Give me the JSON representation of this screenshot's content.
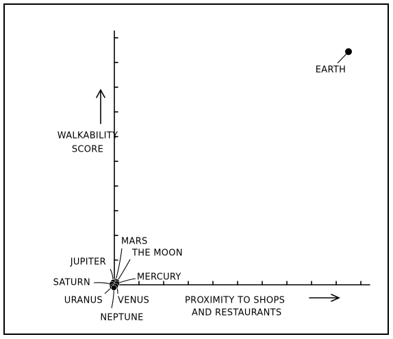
{
  "chart_data": {
    "type": "scatter",
    "ylabel": [
      "WALKABILITY",
      "SCORE"
    ],
    "xlabel": [
      "PROXIMITY TO SHOPS",
      "AND RESTAURANTS"
    ],
    "xlim": [
      0,
      10.36
    ],
    "ylim": [
      0,
      10.28
    ],
    "xticks": [
      1,
      2,
      3,
      4,
      5,
      6,
      7,
      8,
      9,
      10
    ],
    "yticks": [
      1,
      2,
      3,
      4,
      5,
      6,
      7,
      8,
      9,
      10
    ],
    "color": "#000000",
    "points": [
      {
        "label": "EARTH",
        "x": 9.5,
        "y": 9.44
      },
      {
        "label": "MARS",
        "x": 0.05,
        "y": 0.15
      },
      {
        "label": "THE MOON",
        "x": 0.1,
        "y": 0.12
      },
      {
        "label": "JUPITER",
        "x": -0.05,
        "y": 0.1
      },
      {
        "label": "MERCURY",
        "x": 0.1,
        "y": 0.05
      },
      {
        "label": "SATURN",
        "x": -0.1,
        "y": 0.02
      },
      {
        "label": "URANUS",
        "x": -0.08,
        "y": -0.08
      },
      {
        "label": "VENUS",
        "x": 0.05,
        "y": -0.05
      },
      {
        "label": "NEPTUNE",
        "x": -0.02,
        "y": -0.12
      }
    ]
  }
}
